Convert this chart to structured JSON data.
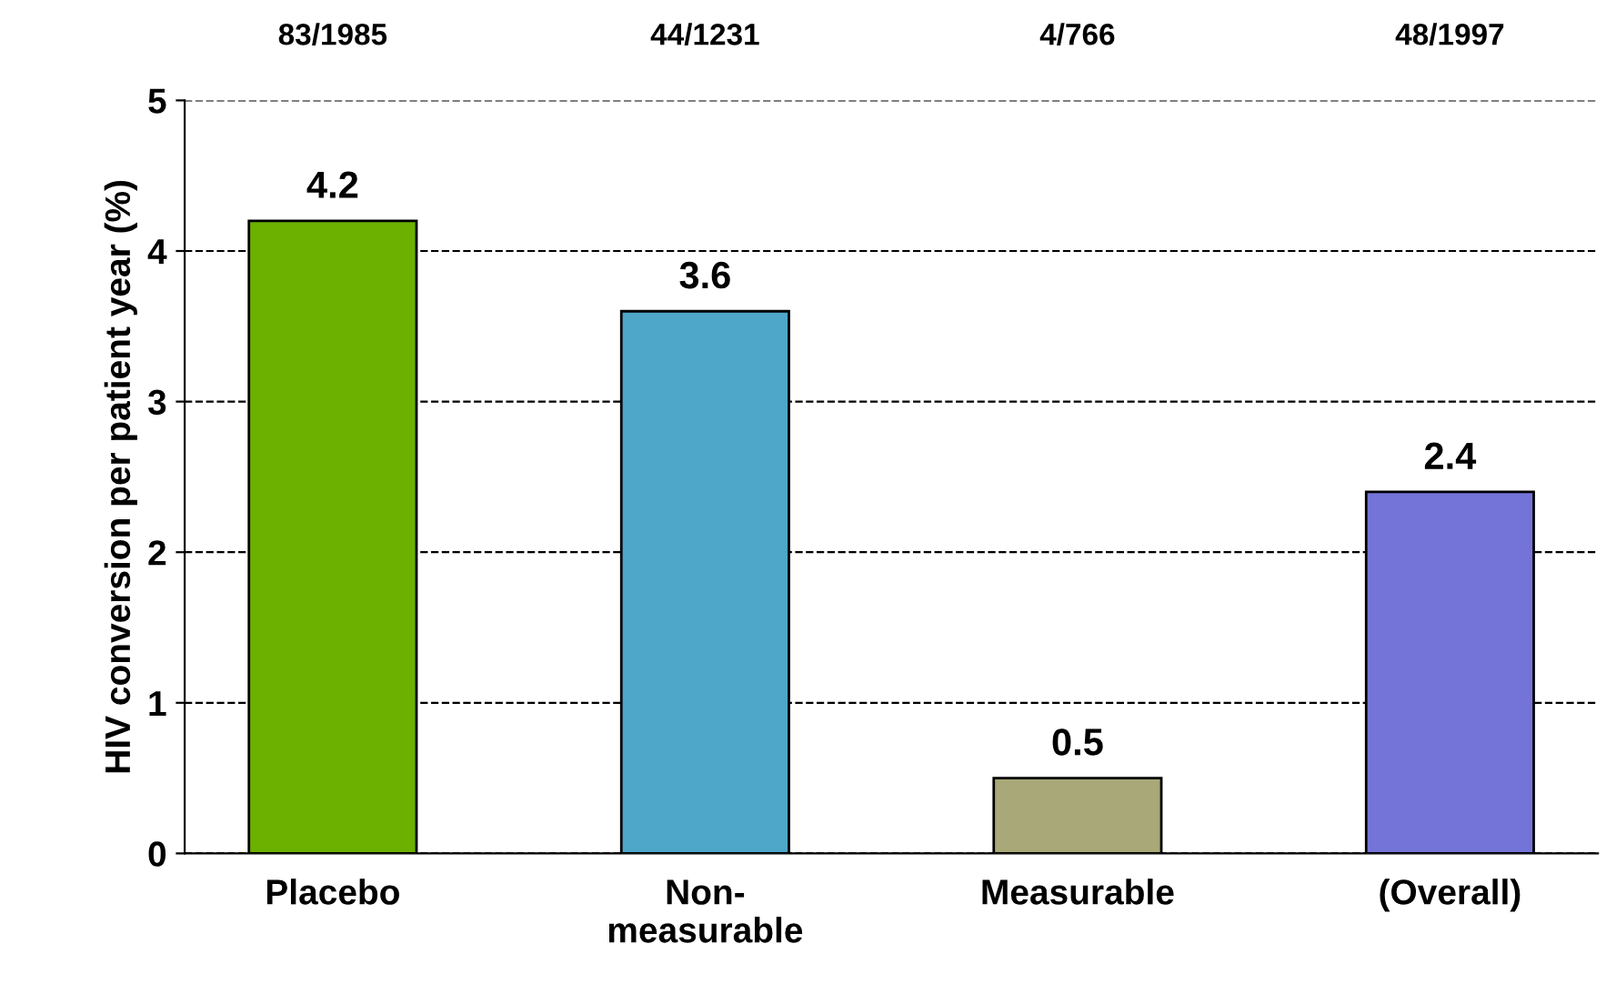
{
  "chart_data": {
    "type": "bar",
    "ylabel": "HIV conversion per patient year (%)",
    "categories": [
      "Placebo",
      "Non-\nmeasurable",
      "Measurable",
      "(Overall)"
    ],
    "values": [
      4.2,
      3.6,
      0.5,
      2.4
    ],
    "colors": [
      "#6cb000",
      "#4ea6c8",
      "#a8a878",
      "#7474d8"
    ],
    "ylim": [
      0,
      5
    ],
    "yticks": [
      0,
      1,
      2,
      3,
      4,
      5
    ],
    "grid": "y",
    "data_labels": true,
    "annotations": [
      "83/1985",
      "44/1231",
      "4/766",
      "48/1997"
    ]
  }
}
